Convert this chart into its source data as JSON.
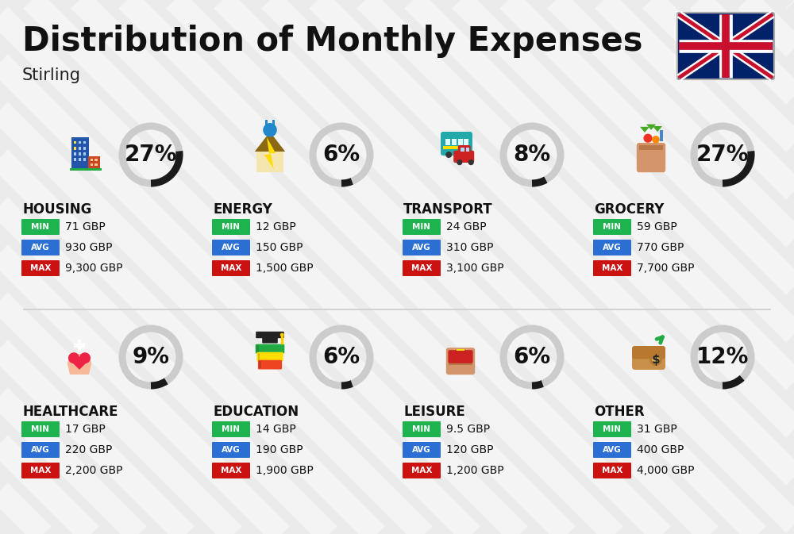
{
  "title": "Distribution of Monthly Expenses",
  "subtitle": "Stirling",
  "background_color": "#ebebeb",
  "categories": [
    {
      "name": "HOUSING",
      "percent": 27,
      "min_val": "71 GBP",
      "avg_val": "930 GBP",
      "max_val": "9,300 GBP",
      "row": 0,
      "col": 0,
      "icon": "housing"
    },
    {
      "name": "ENERGY",
      "percent": 6,
      "min_val": "12 GBP",
      "avg_val": "150 GBP",
      "max_val": "1,500 GBP",
      "row": 0,
      "col": 1,
      "icon": "energy"
    },
    {
      "name": "TRANSPORT",
      "percent": 8,
      "min_val": "24 GBP",
      "avg_val": "310 GBP",
      "max_val": "3,100 GBP",
      "row": 0,
      "col": 2,
      "icon": "transport"
    },
    {
      "name": "GROCERY",
      "percent": 27,
      "min_val": "59 GBP",
      "avg_val": "770 GBP",
      "max_val": "7,700 GBP",
      "row": 0,
      "col": 3,
      "icon": "grocery"
    },
    {
      "name": "HEALTHCARE",
      "percent": 9,
      "min_val": "17 GBP",
      "avg_val": "220 GBP",
      "max_val": "2,200 GBP",
      "row": 1,
      "col": 0,
      "icon": "healthcare"
    },
    {
      "name": "EDUCATION",
      "percent": 6,
      "min_val": "14 GBP",
      "avg_val": "190 GBP",
      "max_val": "1,900 GBP",
      "row": 1,
      "col": 1,
      "icon": "education"
    },
    {
      "name": "LEISURE",
      "percent": 6,
      "min_val": "9.5 GBP",
      "avg_val": "120 GBP",
      "max_val": "1,200 GBP",
      "row": 1,
      "col": 2,
      "icon": "leisure"
    },
    {
      "name": "OTHER",
      "percent": 12,
      "min_val": "31 GBP",
      "avg_val": "400 GBP",
      "max_val": "4,000 GBP",
      "row": 1,
      "col": 3,
      "icon": "other"
    }
  ],
  "min_color": "#1db34f",
  "avg_color": "#2b6fd4",
  "max_color": "#cc1111",
  "label_color": "#ffffff",
  "arc_color_filled": "#1a1a1a",
  "arc_color_empty": "#cccccc",
  "title_fontsize": 30,
  "subtitle_fontsize": 15,
  "category_fontsize": 11,
  "value_fontsize": 11,
  "percent_fontsize": 20
}
